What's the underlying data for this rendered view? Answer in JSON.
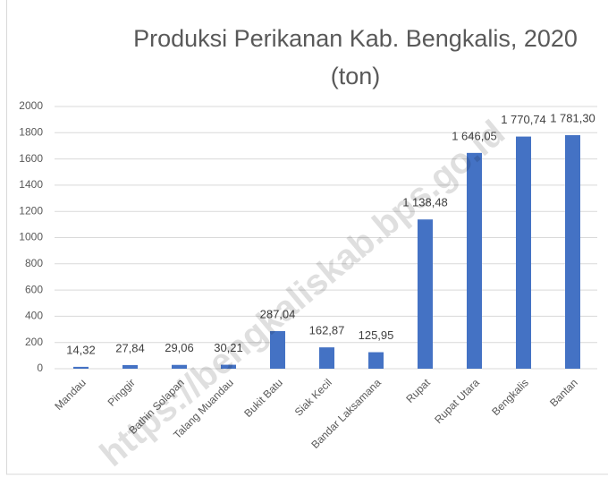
{
  "chart_data": {
    "type": "bar",
    "title": "Produksi Perikanan Kab. Bengkalis, 2020 (ton)",
    "watermark": "https://bengkaliskab.bps.go.id",
    "categories": [
      "Mandau",
      "Pinggir",
      "Bathin Solapan",
      "Talang Muandau",
      "Bukit Batu",
      "Siak Kecil",
      "Bandar Laksamana",
      "Rupat",
      "Rupat Utara",
      "Bengkalis",
      "Bantan"
    ],
    "values": [
      14.32,
      27.84,
      29.06,
      30.21,
      287.04,
      162.87,
      125.95,
      1138.48,
      1646.05,
      1770.74,
      1781.3
    ],
    "value_labels": [
      "14,32",
      "27,84",
      "29,06",
      "30,21",
      "287,04",
      "162,87",
      "125,95",
      "1 138,48",
      "1 646,05",
      "1 770,74",
      "1 781,30"
    ],
    "color": "#4472c4",
    "ylim": [
      0,
      2000
    ],
    "yticks": [
      0,
      200,
      400,
      600,
      800,
      1000,
      1200,
      1400,
      1600,
      1800,
      2000
    ],
    "grid": true
  }
}
